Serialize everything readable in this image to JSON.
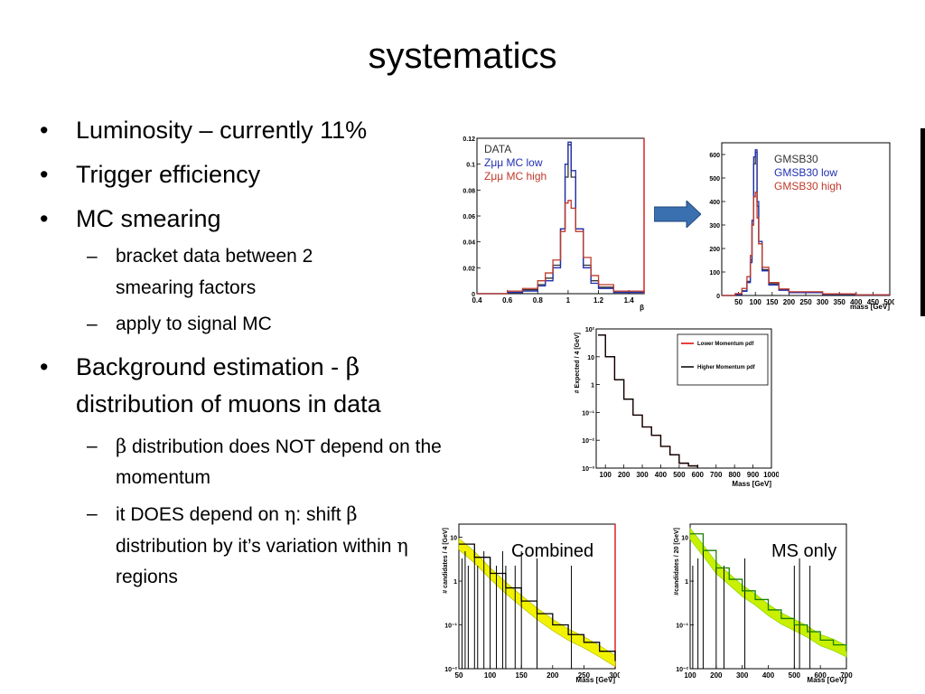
{
  "slide": {
    "title": "systematics",
    "bullets": [
      {
        "text": "Luminosity – currently 11%"
      },
      {
        "text": "Trigger efficiency"
      },
      {
        "text": "MC smearing",
        "sub": [
          "bracket data between 2 smearing factors",
          "apply to signal MC"
        ]
      },
      {
        "text_pre": "Background estimation - ",
        "greek": "β",
        "text_post": " distribution of muons in data",
        "sub_rich": [
          {
            "greek": "β",
            "text": " distribution does NOT depend on the momentum"
          },
          {
            "t1": "it DOES depend on ",
            "g1": "η",
            "t2": ": shift ",
            "g2": "β",
            "t3": " distribution by it’s variation within ",
            "g3": "η",
            "t4": " regions"
          }
        ]
      }
    ],
    "bullet_glyph": "•",
    "dash_glyph": "–",
    "arrow_icon": "arrow-right-icon"
  },
  "chart_data": [
    {
      "type": "line",
      "xlabel": "β",
      "ylabel": "",
      "xlim": [
        0.4,
        1.5
      ],
      "ylim": [
        0,
        0.12
      ],
      "xticks": [
        "0.4",
        "0.6",
        "0.8",
        "1",
        "1.2",
        "1.4"
      ],
      "yticks": [
        "0",
        "0.02",
        "0.04",
        "0.06",
        "0.08",
        "0.1",
        "0.12"
      ],
      "legend": [
        "DATA",
        "Zμμ MC low",
        "Zμμ MC high"
      ],
      "legend_colors": [
        "#333333",
        "#1f2fb0",
        "#c0392b"
      ],
      "series": [
        {
          "name": "DATA",
          "x": [
            0.4,
            0.6,
            0.7,
            0.8,
            0.85,
            0.9,
            0.95,
            0.98,
            1.0,
            1.02,
            1.05,
            1.1,
            1.15,
            1.2,
            1.3,
            1.5
          ],
          "y": [
            0,
            0.001,
            0.003,
            0.007,
            0.012,
            0.022,
            0.05,
            0.09,
            0.115,
            0.09,
            0.05,
            0.022,
            0.01,
            0.005,
            0.002,
            0
          ]
        },
        {
          "name": "Zμμ MC low",
          "x": [
            0.4,
            0.6,
            0.7,
            0.8,
            0.85,
            0.9,
            0.95,
            0.98,
            1.0,
            1.02,
            1.05,
            1.1,
            1.15,
            1.2,
            1.3,
            1.5
          ],
          "y": [
            0,
            0.001,
            0.002,
            0.006,
            0.01,
            0.02,
            0.05,
            0.1,
            0.117,
            0.095,
            0.05,
            0.02,
            0.008,
            0.004,
            0.001,
            0
          ]
        },
        {
          "name": "Zμμ MC high",
          "x": [
            0.4,
            0.6,
            0.7,
            0.8,
            0.85,
            0.9,
            0.95,
            0.98,
            1.0,
            1.02,
            1.05,
            1.1,
            1.15,
            1.2,
            1.3,
            1.5
          ],
          "y": [
            0,
            0.002,
            0.004,
            0.01,
            0.016,
            0.026,
            0.048,
            0.07,
            0.072,
            0.066,
            0.048,
            0.028,
            0.014,
            0.007,
            0.002,
            0
          ]
        }
      ]
    },
    {
      "type": "line",
      "xlabel": "mass [GeV]",
      "xlim": [
        0,
        500
      ],
      "ylim": [
        0,
        650
      ],
      "xticks": [
        "50",
        "100",
        "150",
        "200",
        "250",
        "300",
        "350",
        "400",
        "450",
        "500"
      ],
      "yticks": [
        "0",
        "100",
        "200",
        "300",
        "400",
        "500",
        "600"
      ],
      "legend": [
        "GMSB30",
        "GMSB30 low",
        "GMSB30 high"
      ],
      "legend_colors": [
        "#333333",
        "#1f2fb0",
        "#c0392b"
      ],
      "series": [
        {
          "name": "GMSB30",
          "x": [
            0,
            40,
            60,
            75,
            85,
            90,
            95,
            100,
            105,
            110,
            120,
            140,
            170,
            200,
            300,
            400,
            500
          ],
          "y": [
            0,
            5,
            20,
            60,
            150,
            300,
            560,
            610,
            380,
            220,
            110,
            50,
            25,
            15,
            6,
            3,
            1
          ]
        },
        {
          "name": "GMSB30 low",
          "x": [
            0,
            40,
            60,
            75,
            85,
            90,
            95,
            100,
            105,
            110,
            120,
            140,
            170,
            200,
            300,
            400,
            500
          ],
          "y": [
            0,
            4,
            18,
            55,
            140,
            320,
            590,
            620,
            400,
            230,
            105,
            45,
            22,
            12,
            5,
            2,
            1
          ]
        },
        {
          "name": "GMSB30 high",
          "x": [
            0,
            40,
            60,
            75,
            85,
            90,
            95,
            100,
            105,
            110,
            120,
            140,
            170,
            200,
            300,
            400,
            500
          ],
          "y": [
            0,
            8,
            30,
            80,
            170,
            300,
            420,
            440,
            330,
            220,
            120,
            55,
            28,
            16,
            7,
            3,
            1
          ]
        }
      ]
    },
    {
      "type": "line",
      "xlabel": "Mass [GeV]",
      "ylabel": "# Expected / 4 [GeV]",
      "log_y": true,
      "xlim": [
        50,
        1000
      ],
      "ylim": [
        0.001,
        100
      ],
      "xticks": [
        "100",
        "200",
        "300",
        "400",
        "500",
        "600",
        "700",
        "800",
        "900",
        "1000"
      ],
      "yticks": [
        "10⁻³",
        "10⁻²",
        "10⁻¹",
        "1",
        "10",
        "10²"
      ],
      "legend": [
        "Lower Momentum pdf",
        "Higher Momentum pdf"
      ],
      "legend_colors": [
        "#e00000",
        "#000000"
      ],
      "series": [
        {
          "name": "Lower Momentum pdf",
          "x": [
            60,
            100,
            150,
            200,
            250,
            300,
            350,
            400,
            450,
            500,
            550,
            600
          ],
          "y": [
            60,
            10,
            1.5,
            0.3,
            0.08,
            0.03,
            0.015,
            0.006,
            0.003,
            0.0015,
            0.0012,
            0.001
          ]
        },
        {
          "name": "Higher Momentum pdf",
          "x": [
            60,
            100,
            150,
            200,
            250,
            300,
            350,
            400,
            450,
            500,
            550,
            600
          ],
          "y": [
            60,
            10,
            1.5,
            0.3,
            0.08,
            0.03,
            0.015,
            0.006,
            0.003,
            0.0015,
            0.0012,
            0.001
          ]
        }
      ]
    },
    {
      "type": "line",
      "annotation": "Combined",
      "xlabel": "Mass [GeV]",
      "ylabel": "# candidates / 4 [GeV]",
      "log_y": true,
      "xlim": [
        50,
        300
      ],
      "ylim": [
        0.01,
        20
      ],
      "xticks": [
        "50",
        "100",
        "150",
        "200",
        "250",
        "300"
      ],
      "yticks": [
        "10⁻²",
        "10⁻¹",
        "1",
        "10"
      ],
      "series": [
        {
          "name": "",
          "x": [
            50,
            75,
            100,
            125,
            150,
            175,
            200,
            225,
            250,
            275,
            300
          ],
          "y": [
            7,
            3.5,
            1.5,
            0.7,
            0.35,
            0.18,
            0.1,
            0.06,
            0.04,
            0.025,
            0.015
          ]
        }
      ],
      "data_x": [
        55,
        60,
        65,
        75,
        80,
        90,
        100,
        110,
        120,
        125,
        140,
        150,
        175,
        230
      ]
    },
    {
      "type": "line",
      "annotation": "MS only",
      "xlabel": "Mass [GeV]",
      "ylabel": "#candidates / 20 [GeV]",
      "log_y": true,
      "xlim": [
        100,
        700
      ],
      "ylim": [
        0.01,
        20
      ],
      "xticks": [
        "100",
        "200",
        "300",
        "400",
        "500",
        "600",
        "700"
      ],
      "yticks": [
        "10⁻²",
        "10⁻¹",
        "1",
        "10"
      ],
      "series": [
        {
          "name": "",
          "x": [
            100,
            150,
            200,
            250,
            300,
            350,
            400,
            450,
            500,
            550,
            600,
            650,
            700
          ],
          "y": [
            12,
            5,
            2,
            1.1,
            0.6,
            0.38,
            0.22,
            0.14,
            0.1,
            0.07,
            0.045,
            0.035,
            0.025
          ]
        }
      ],
      "data_x": [
        110,
        130,
        150,
        200,
        230,
        310,
        500,
        520,
        560
      ]
    }
  ]
}
